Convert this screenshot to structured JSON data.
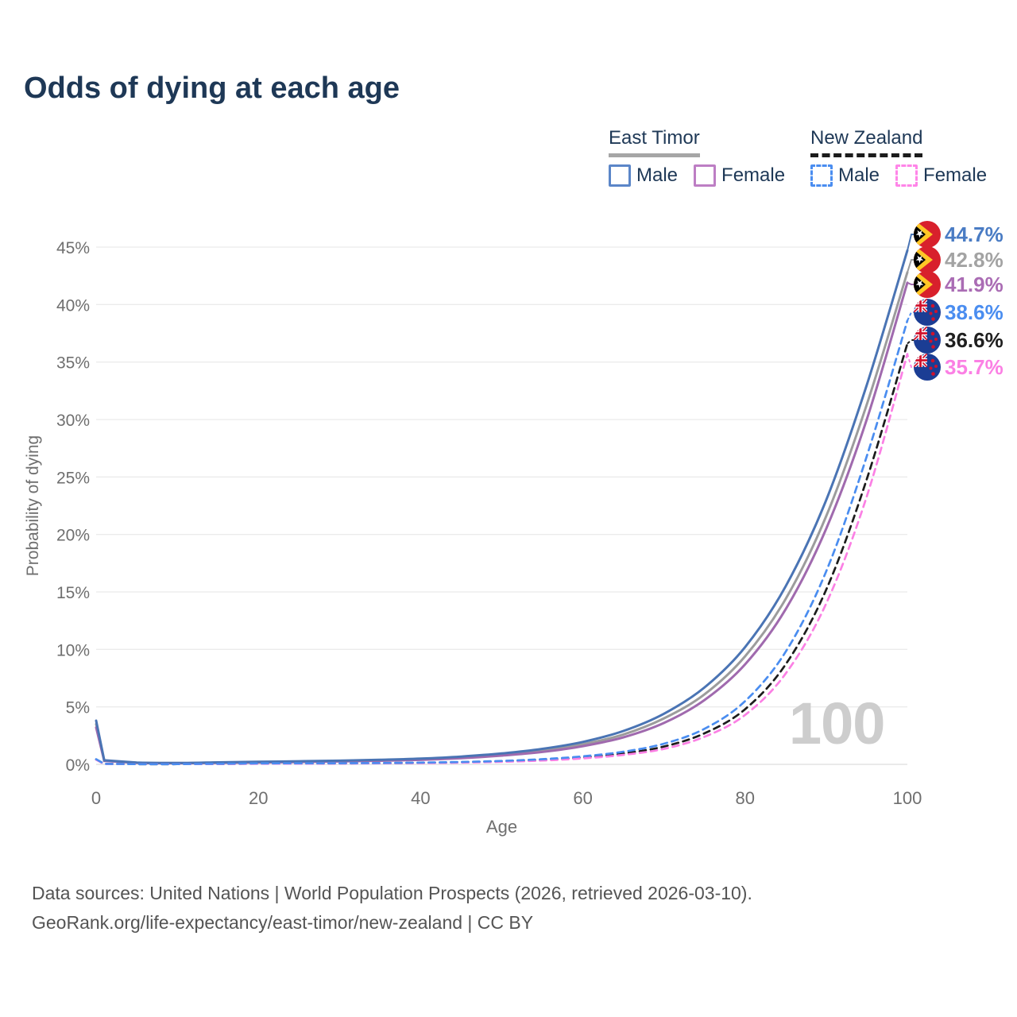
{
  "title": "Odds of dying at each age",
  "legend": {
    "groups": [
      {
        "id": "east-timor",
        "label": "East Timor",
        "line_color": "#a6a6a6",
        "line_style": "solid",
        "items": [
          {
            "label": "Male",
            "color": "#5b86c8",
            "style": "solid"
          },
          {
            "label": "Female",
            "color": "#bd7ec4",
            "style": "solid"
          }
        ]
      },
      {
        "id": "new-zealand",
        "label": "New Zealand",
        "line_color": "#1c1c1c",
        "line_style": "dashed",
        "items": [
          {
            "label": "Male",
            "color": "#4a8df0",
            "style": "dashed"
          },
          {
            "label": "Female",
            "color": "#ff85e8",
            "style": "dashed"
          }
        ]
      }
    ]
  },
  "chart_data": {
    "type": "line",
    "title": "Odds of dying at each age",
    "xlabel": "Age",
    "ylabel": "Probability of dying",
    "xlim": [
      0,
      100
    ],
    "ylim": [
      0,
      45
    ],
    "grid": true,
    "xtick_values": [
      0,
      20,
      40,
      60,
      80,
      100
    ],
    "xtick_labels": [
      "0",
      "20",
      "40",
      "60",
      "80",
      "100"
    ],
    "ytick_values": [
      0,
      5,
      10,
      15,
      20,
      25,
      30,
      35,
      40,
      45
    ],
    "ytick_labels": [
      "0%",
      "5%",
      "10%",
      "15%",
      "20%",
      "25%",
      "30%",
      "35%",
      "40%",
      "45%"
    ],
    "age_counter": "100",
    "x": [
      0,
      1,
      5,
      10,
      15,
      20,
      25,
      30,
      35,
      40,
      45,
      50,
      55,
      60,
      65,
      70,
      75,
      80,
      85,
      90,
      95,
      100
    ],
    "series": [
      {
        "name": "East Timor Male",
        "color": "#4a74b4",
        "dash": false,
        "flag": "east-timor",
        "end_label": "44.7%",
        "end_color": "#4a7cc4",
        "values": [
          3.8,
          0.35,
          0.15,
          0.12,
          0.17,
          0.22,
          0.27,
          0.32,
          0.4,
          0.5,
          0.68,
          0.95,
          1.35,
          1.95,
          2.9,
          4.4,
          6.7,
          10.2,
          15.5,
          23.0,
          33.0,
          44.7
        ]
      },
      {
        "name": "East Timor",
        "color": "#9c9c9c",
        "dash": false,
        "flag": "east-timor",
        "end_label": "42.8%",
        "end_color": "#a3a3a3",
        "values": [
          3.5,
          0.32,
          0.14,
          0.11,
          0.15,
          0.19,
          0.23,
          0.28,
          0.35,
          0.44,
          0.6,
          0.85,
          1.2,
          1.75,
          2.6,
          4.0,
          6.1,
          9.4,
          14.4,
          21.6,
          31.3,
          42.8
        ]
      },
      {
        "name": "East Timor Female",
        "color": "#a06aae",
        "dash": false,
        "flag": "east-timor",
        "end_label": "41.9%",
        "end_color": "#aa6cb4",
        "values": [
          3.2,
          0.3,
          0.13,
          0.1,
          0.13,
          0.16,
          0.2,
          0.25,
          0.31,
          0.39,
          0.53,
          0.76,
          1.08,
          1.58,
          2.35,
          3.6,
          5.6,
          8.7,
          13.5,
          20.5,
          30.0,
          41.9
        ]
      },
      {
        "name": "New Zealand Male",
        "color": "#4a8df0",
        "dash": true,
        "flag": "new-zealand",
        "end_label": "38.6%",
        "end_color": "#4a8df0",
        "values": [
          0.45,
          0.04,
          0.02,
          0.02,
          0.05,
          0.08,
          0.09,
          0.1,
          0.12,
          0.15,
          0.21,
          0.3,
          0.45,
          0.7,
          1.1,
          1.8,
          3.1,
          5.5,
          9.8,
          16.8,
          26.8,
          38.6
        ]
      },
      {
        "name": "New Zealand",
        "color": "#1c1c1c",
        "dash": true,
        "flag": "new-zealand",
        "end_label": "36.6%",
        "end_color": "#1f1f1f",
        "values": [
          0.42,
          0.04,
          0.02,
          0.02,
          0.04,
          0.06,
          0.07,
          0.08,
          0.1,
          0.13,
          0.18,
          0.26,
          0.39,
          0.6,
          0.95,
          1.55,
          2.7,
          4.8,
          8.7,
          15.2,
          24.8,
          36.6
        ]
      },
      {
        "name": "New Zealand Female",
        "color": "#fb80e4",
        "dash": true,
        "flag": "new-zealand",
        "end_label": "35.7%",
        "end_color": "#fb80e4",
        "values": [
          0.4,
          0.03,
          0.02,
          0.02,
          0.03,
          0.05,
          0.06,
          0.07,
          0.09,
          0.11,
          0.15,
          0.22,
          0.33,
          0.52,
          0.82,
          1.35,
          2.4,
          4.3,
          7.9,
          14.0,
          23.3,
          35.7
        ]
      }
    ]
  },
  "footer": {
    "line1": "Data sources: United Nations | World Population Prospects (2026, retrieved 2026-03-10).",
    "line2": "GeoRank.org/life-expectancy/east-timor/new-zealand | CC BY"
  }
}
